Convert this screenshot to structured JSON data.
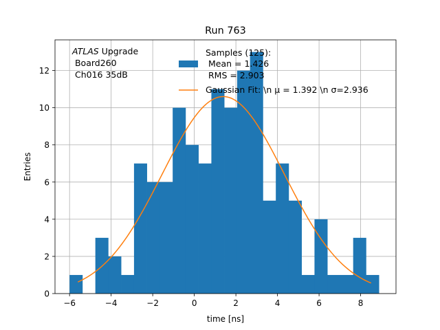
{
  "chart_data": {
    "type": "bar",
    "title": "Run 763",
    "xlabel": "time [ns]",
    "ylabel": "Entries",
    "xlim": [
      -6.7,
      9.7
    ],
    "ylim": [
      0,
      13.65
    ],
    "xticks": [
      -6,
      -4,
      -2,
      0,
      2,
      4,
      6,
      8
    ],
    "yticks": [
      0,
      2,
      4,
      6,
      8,
      10,
      12
    ],
    "xtick_labels": [
      "−6",
      "−4",
      "−2",
      "0",
      "2",
      "4",
      "6",
      "8"
    ],
    "ytick_labels": [
      "0",
      "2",
      "4",
      "6",
      "8",
      "10",
      "12"
    ],
    "grid": true,
    "bin_edges": [
      -6.0,
      -5.38,
      -4.76,
      -4.14,
      -3.52,
      -2.9,
      -2.28,
      -1.66,
      -1.04,
      -0.42,
      0.2,
      0.82,
      1.44,
      2.06,
      2.68,
      3.3,
      3.92,
      4.54,
      5.16,
      5.78,
      6.4,
      7.02,
      7.64,
      8.26,
      8.88
    ],
    "counts": [
      1,
      0,
      3,
      2,
      1,
      7,
      6,
      6,
      10,
      8,
      7,
      11,
      10,
      12,
      13,
      5,
      7,
      5,
      1,
      4,
      1,
      1,
      3,
      1
    ],
    "histogram_color": "#1f77b4",
    "fit": {
      "mu": 1.392,
      "sigma": 2.936,
      "amplitude": 10.6,
      "x_range": [
        -5.6,
        8.5
      ],
      "color": "#ff7f0e"
    },
    "legend": {
      "location": "top-right",
      "hist_label_lines": [
        "Samples (125):",
        " Mean = 1.426",
        " RMS = 2.903"
      ],
      "fit_label": "Gaussian Fit: \\n μ = 1.392 \\n σ=2.936"
    },
    "annotation": {
      "atlas": "ATLAS",
      "upgrade": " Upgrade",
      "board": " Board260",
      "channel": " Ch016 35dB"
    }
  }
}
